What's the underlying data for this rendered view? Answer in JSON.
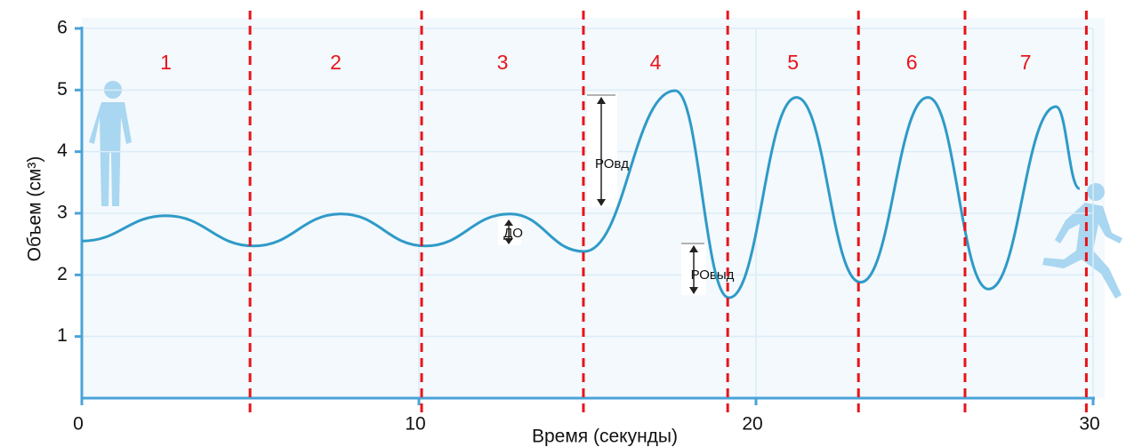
{
  "chart_data": {
    "type": "line",
    "x_label": "Время (секунды)",
    "y_label": "Объем (см³)",
    "x": [
      0,
      2.5,
      5.1,
      7.7,
      10.2,
      12.7,
      14.9,
      17.6,
      19.2,
      21.2,
      23.1,
      25.1,
      26.9,
      28.9,
      29.6
    ],
    "series": [
      {
        "color": "#2f9ac7",
        "values": [
          2.55,
          2.96,
          2.47,
          2.99,
          2.47,
          2.99,
          2.38,
          4.99,
          1.63,
          4.88,
          1.88,
          4.88,
          1.77,
          4.73,
          3.4
        ]
      }
    ],
    "xlim": [
      0,
      30
    ],
    "xticks": [
      0,
      10,
      20,
      30
    ],
    "ylim": [
      0,
      6
    ],
    "yticks": [
      1,
      2,
      3,
      4,
      5,
      6
    ],
    "grid": true,
    "phase_boundaries": [
      4.99,
      10.08,
      14.88,
      19.16,
      23.04,
      26.2,
      29.8
    ],
    "phase_labels": [
      "1",
      "2",
      "3",
      "4",
      "5",
      "6",
      "7"
    ],
    "annotations": [
      "ДО",
      "РОвд",
      "РОвыд"
    ]
  }
}
